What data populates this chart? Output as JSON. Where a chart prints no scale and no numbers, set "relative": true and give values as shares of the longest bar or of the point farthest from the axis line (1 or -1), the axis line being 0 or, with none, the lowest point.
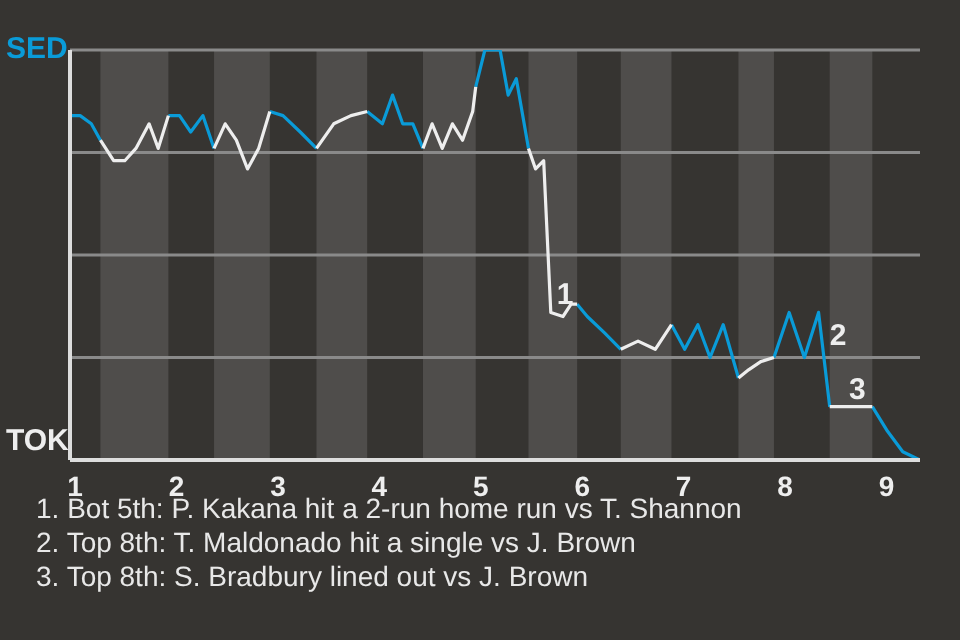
{
  "chart_data": {
    "type": "line",
    "relative": true,
    "xlim": [
      0.95,
      9.33
    ],
    "xticks": [
      1,
      2,
      3,
      4,
      5,
      6,
      7,
      8,
      9
    ],
    "grid": "y",
    "series": [
      {
        "name": "SED",
        "color": "#0a9bd8",
        "x": [
          0.95,
          1.05,
          1.16,
          1.25,
          1.59,
          1.92,
          2.03,
          2.14,
          2.26,
          2.37,
          2.64,
          2.92,
          3.05,
          3.22,
          3.38,
          3.63,
          3.88,
          4.03,
          4.13,
          4.23,
          4.33,
          4.43,
          4.68,
          4.95,
          5.04,
          5.19,
          5.27,
          5.35,
          5.47,
          5.71,
          5.95,
          6.05,
          6.22,
          6.38,
          6.63,
          6.88,
          7.01,
          7.14,
          7.26,
          7.39,
          7.54,
          7.71,
          7.89,
          8.04,
          8.19,
          8.33,
          8.44,
          8.64,
          8.86,
          9.01,
          9.16,
          9.33
        ],
        "values": [
          0.84,
          0.84,
          0.82,
          0.78,
          null,
          0.84,
          0.84,
          0.8,
          0.84,
          0.76,
          null,
          0.85,
          0.84,
          0.8,
          0.76,
          null,
          0.85,
          0.82,
          0.89,
          0.82,
          0.82,
          0.76,
          null,
          0.91,
          1,
          1,
          0.89,
          0.93,
          0.76,
          null,
          0.38,
          0.35,
          0.31,
          0.27,
          null,
          0.33,
          0.27,
          0.33,
          0.25,
          0.33,
          0.2,
          null,
          0.25,
          0.36,
          0.25,
          0.36,
          0.13,
          null,
          0.13,
          0.07,
          0.02,
          0
        ]
      },
      {
        "name": "TOK",
        "color": "#eeeeee",
        "x": [
          1.25,
          1.38,
          1.49,
          1.6,
          1.73,
          1.82,
          1.92,
          2.14,
          2.37,
          2.48,
          2.59,
          2.7,
          2.81,
          2.92,
          3.13,
          3.38,
          3.55,
          3.72,
          3.88,
          4.18,
          4.43,
          4.52,
          4.62,
          4.72,
          4.82,
          4.92,
          4.95,
          5.21,
          5.47,
          5.54,
          5.62,
          5.69,
          5.81,
          5.89,
          5.95,
          6.13,
          6.38,
          6.55,
          6.72,
          6.88,
          7.23,
          7.54,
          7.64,
          7.76,
          7.89,
          8.16,
          8.44,
          8.57,
          8.69,
          8.86
        ],
        "values": [
          0.78,
          0.73,
          0.73,
          0.76,
          0.82,
          0.76,
          0.84,
          null,
          0.76,
          0.82,
          0.78,
          0.71,
          0.76,
          0.85,
          null,
          0.76,
          0.82,
          0.84,
          0.85,
          null,
          0.76,
          0.82,
          0.76,
          0.82,
          0.78,
          0.85,
          0.91,
          null,
          0.76,
          0.71,
          0.73,
          0.36,
          0.35,
          0.38,
          0.38,
          null,
          0.27,
          0.29,
          0.27,
          0.33,
          null,
          0.2,
          0.22,
          0.24,
          0.25,
          null,
          0.13,
          0.13,
          0.13,
          0.13
        ]
      }
    ],
    "bands": [
      {
        "axis": "x",
        "from": 1.25,
        "to": 1.92,
        "color": "#4f4d4b"
      },
      {
        "axis": "x",
        "from": 2.37,
        "to": 2.92,
        "color": "#4f4d4b"
      },
      {
        "axis": "x",
        "from": 3.38,
        "to": 3.88,
        "color": "#4f4d4b"
      },
      {
        "axis": "x",
        "from": 4.43,
        "to": 4.95,
        "color": "#4f4d4b"
      },
      {
        "axis": "x",
        "from": 5.47,
        "to": 5.95,
        "color": "#4f4d4b"
      },
      {
        "axis": "x",
        "from": 6.38,
        "to": 6.88,
        "color": "#4f4d4b"
      },
      {
        "axis": "x",
        "from": 7.54,
        "to": 7.89,
        "color": "#4f4d4b"
      },
      {
        "axis": "x",
        "from": 8.44,
        "to": 8.86,
        "color": "#4f4d4b"
      }
    ],
    "annotations": [
      {
        "text": "1",
        "x": 5.69,
        "y": 0.36
      },
      {
        "text": "2",
        "x": 8.38,
        "y": 0.26
      },
      {
        "text": "3",
        "x": 8.57,
        "y": 0.13
      },
      "1. Bot 5th: P. Kakana hit a 2-run home run vs T. Shannon",
      "2. Top 8th: T. Maldonado hit a single vs J. Brown",
      "3. Top 8th: S. Bradbury lined out vs J. Brown"
    ]
  }
}
